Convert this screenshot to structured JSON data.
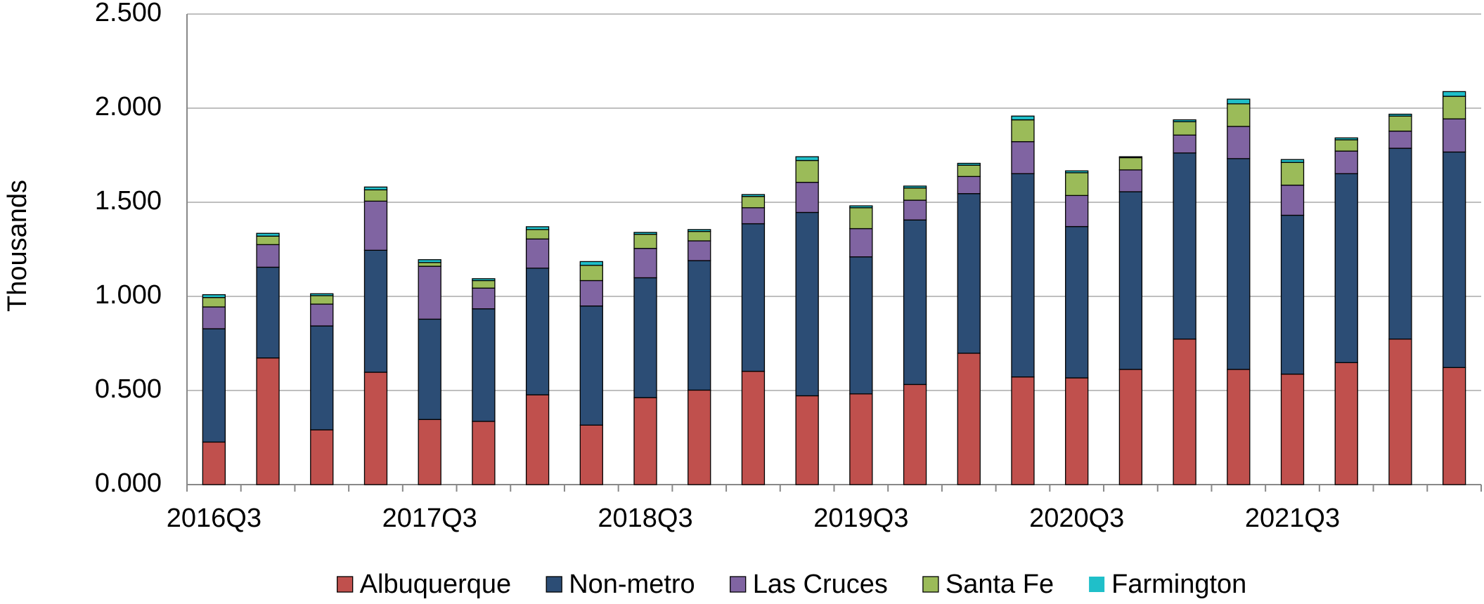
{
  "chart_data": {
    "type": "stacked_bar",
    "y_label": "Thousands",
    "categories": [
      "2016Q3",
      null,
      null,
      null,
      "2017Q3",
      null,
      null,
      null,
      "2018Q3",
      null,
      null,
      null,
      "2019Q3",
      null,
      null,
      null,
      "2020Q3",
      null,
      null,
      null,
      "2021Q3",
      null,
      null,
      null
    ],
    "series": [
      {
        "name": "Albuquerque",
        "color": "#c0504d",
        "values": [
          0.226,
          0.673,
          0.291,
          0.597,
          0.346,
          0.336,
          0.477,
          0.316,
          0.462,
          0.502,
          0.602,
          0.472,
          0.482,
          0.532,
          0.698,
          0.572,
          0.567,
          0.612,
          0.773,
          0.612,
          0.587,
          0.648,
          0.773,
          0.622
        ]
      },
      {
        "name": "Non-metro",
        "color": "#2c4d75",
        "values": [
          0.602,
          0.482,
          0.552,
          0.648,
          0.533,
          0.598,
          0.673,
          0.633,
          0.637,
          0.688,
          0.784,
          0.974,
          0.728,
          0.874,
          0.848,
          1.08,
          0.804,
          0.944,
          0.989,
          1.12,
          0.844,
          1.004,
          1.014,
          1.145
        ]
      },
      {
        "name": "Las Cruces",
        "color": "#8064a2",
        "values": [
          0.116,
          0.12,
          0.116,
          0.261,
          0.281,
          0.11,
          0.155,
          0.135,
          0.156,
          0.105,
          0.085,
          0.16,
          0.15,
          0.105,
          0.091,
          0.17,
          0.165,
          0.116,
          0.095,
          0.171,
          0.16,
          0.12,
          0.091,
          0.176
        ]
      },
      {
        "name": "Santa Fe",
        "color": "#9bbb59",
        "values": [
          0.05,
          0.045,
          0.045,
          0.06,
          0.02,
          0.04,
          0.05,
          0.081,
          0.075,
          0.05,
          0.06,
          0.116,
          0.111,
          0.065,
          0.06,
          0.116,
          0.121,
          0.065,
          0.071,
          0.12,
          0.121,
          0.06,
          0.08,
          0.12
        ]
      },
      {
        "name": "Farmington",
        "color": "#1fbfc9",
        "values": [
          0.015,
          0.015,
          0.01,
          0.015,
          0.015,
          0.01,
          0.015,
          0.02,
          0.01,
          0.01,
          0.01,
          0.02,
          0.01,
          0.01,
          0.01,
          0.02,
          0.01,
          0.005,
          0.01,
          0.025,
          0.015,
          0.01,
          0.01,
          0.025
        ]
      }
    ],
    "ylim": [
      0,
      2.5
    ],
    "yticks": [
      {
        "value": 0,
        "label": "0.000"
      },
      {
        "value": 0.5,
        "label": "0.500"
      },
      {
        "value": 1,
        "label": "1.000"
      },
      {
        "value": 1.5,
        "label": "1.500"
      },
      {
        "value": 2,
        "label": "2.000"
      },
      {
        "value": 2.5,
        "label": "2.500"
      }
    ],
    "grid": true,
    "legend": "bottom"
  }
}
